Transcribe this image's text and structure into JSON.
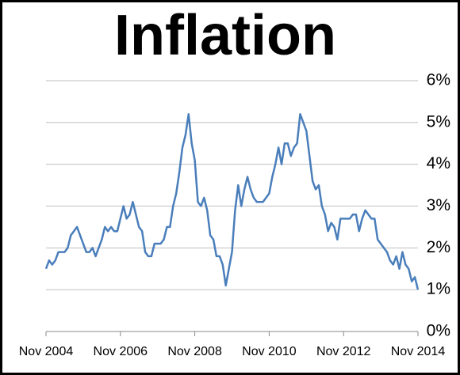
{
  "chart_data": {
    "type": "line",
    "title": "Inflation",
    "categories": [
      "Nov 2004",
      null,
      null,
      null,
      null,
      null,
      null,
      null,
      null,
      null,
      null,
      null,
      null,
      null,
      null,
      null,
      null,
      null,
      null,
      null,
      null,
      null,
      null,
      null,
      "Nov 2006",
      null,
      null,
      null,
      null,
      null,
      null,
      null,
      null,
      null,
      null,
      null,
      null,
      null,
      null,
      null,
      null,
      null,
      null,
      null,
      null,
      null,
      null,
      null,
      "Nov 2008",
      null,
      null,
      null,
      null,
      null,
      null,
      null,
      null,
      null,
      null,
      null,
      null,
      null,
      null,
      null,
      null,
      null,
      null,
      null,
      null,
      null,
      null,
      null,
      "Nov 2010",
      null,
      null,
      null,
      null,
      null,
      null,
      null,
      null,
      null,
      null,
      null,
      null,
      null,
      null,
      null,
      null,
      null,
      null,
      null,
      null,
      null,
      null,
      null,
      "Nov 2012",
      null,
      null,
      null,
      null,
      null,
      null,
      null,
      null,
      null,
      null,
      null,
      null,
      null,
      null,
      null,
      null,
      null,
      null,
      null,
      null,
      null,
      null,
      null,
      "Nov 2014"
    ],
    "values": [
      1.5,
      1.7,
      1.6,
      1.7,
      1.9,
      1.9,
      1.9,
      2.0,
      2.3,
      2.4,
      2.5,
      2.3,
      2.1,
      1.9,
      1.9,
      2.0,
      1.8,
      2.0,
      2.2,
      2.5,
      2.4,
      2.5,
      2.4,
      2.4,
      2.7,
      3.0,
      2.7,
      2.8,
      3.1,
      2.8,
      2.5,
      2.4,
      1.9,
      1.8,
      1.8,
      2.1,
      2.1,
      2.1,
      2.2,
      2.5,
      2.5,
      3.0,
      3.3,
      3.8,
      4.4,
      4.7,
      5.2,
      4.5,
      4.1,
      3.1,
      3.0,
      3.2,
      2.9,
      2.3,
      2.2,
      1.8,
      1.8,
      1.6,
      1.1,
      1.5,
      1.9,
      2.9,
      3.5,
      3.0,
      3.4,
      3.7,
      3.4,
      3.2,
      3.1,
      3.1,
      3.1,
      3.2,
      3.3,
      3.7,
      4.0,
      4.4,
      4.0,
      4.5,
      4.5,
      4.2,
      4.4,
      4.5,
      5.2,
      5.0,
      4.8,
      4.2,
      3.6,
      3.4,
      3.5,
      3.0,
      2.8,
      2.4,
      2.6,
      2.5,
      2.2,
      2.7,
      2.7,
      2.7,
      2.7,
      2.8,
      2.8,
      2.4,
      2.7,
      2.9,
      2.8,
      2.7,
      2.7,
      2.2,
      2.1,
      2.0,
      1.9,
      1.7,
      1.6,
      1.8,
      1.5,
      1.9,
      1.6,
      1.5,
      1.2,
      1.3,
      1.0
    ],
    "color": "#4a7ebb",
    "ylim": [
      0,
      6
    ],
    "yticks": [
      {
        "value": 0,
        "label": "0%"
      },
      {
        "value": 1,
        "label": "1%"
      },
      {
        "value": 2,
        "label": "2%"
      },
      {
        "value": 3,
        "label": "3%"
      },
      {
        "value": 4,
        "label": "4%"
      },
      {
        "value": 5,
        "label": "5%"
      },
      {
        "value": 6,
        "label": "6%"
      }
    ],
    "grid": true
  }
}
